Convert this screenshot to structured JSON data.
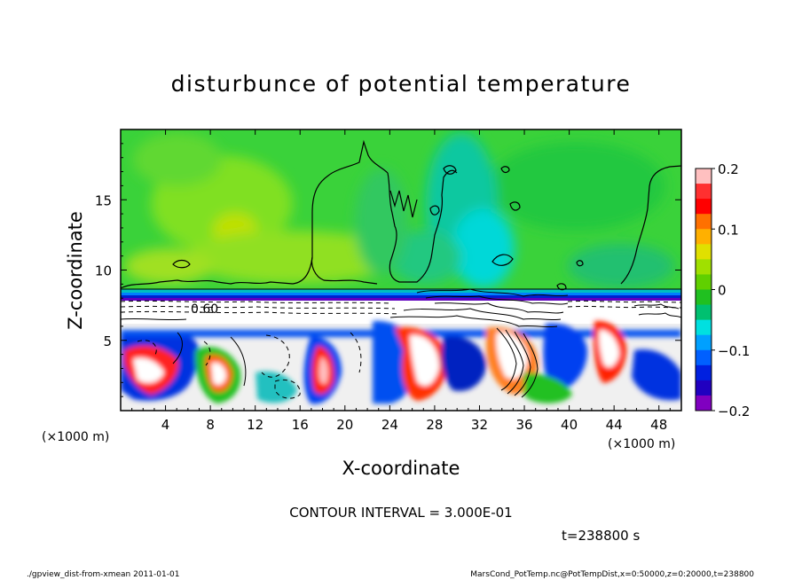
{
  "chart_data": {
    "type": "heatmap",
    "title": "disturbunce of potential temperature",
    "xlabel": "X-coordinate",
    "ylabel": "Z-coordinate",
    "x_unit": "(×1000 m)",
    "y_unit": "(×1000 m)",
    "xlim": [
      0,
      50
    ],
    "ylim": [
      0,
      20
    ],
    "x_ticks": [
      4,
      8,
      12,
      16,
      20,
      24,
      28,
      32,
      36,
      40,
      44,
      48
    ],
    "y_ticks": [
      5,
      10,
      15
    ],
    "colorbar": {
      "ticks": [
        0.2,
        0.1,
        0,
        -0.1,
        -0.2
      ],
      "tick_labels": [
        "0.2",
        "0.1",
        "0",
        "−0.1",
        "−0.2"
      ],
      "range": [
        -0.2,
        0.2
      ],
      "colors": [
        "#ffc0c0",
        "#ff3030",
        "#ff0000",
        "#ff7000",
        "#ffb000",
        "#e0e000",
        "#a0e000",
        "#60d000",
        "#20c020",
        "#00c070",
        "#00e0e0",
        "#00a0ff",
        "#0060ff",
        "#0020e0",
        "#2000c0",
        "#8000c0"
      ]
    },
    "contour_label": "0.60",
    "contour_interval_text": "CONTOUR INTERVAL = 3.000E-01",
    "time_text": "t=238800 s"
  },
  "footer": {
    "left": "./gpview_dist-from-xmean  2011-01-01",
    "right": "MarsCond_PotTemp.nc@PotTempDist,x=0:50000,z=0:20000,t=238800"
  }
}
